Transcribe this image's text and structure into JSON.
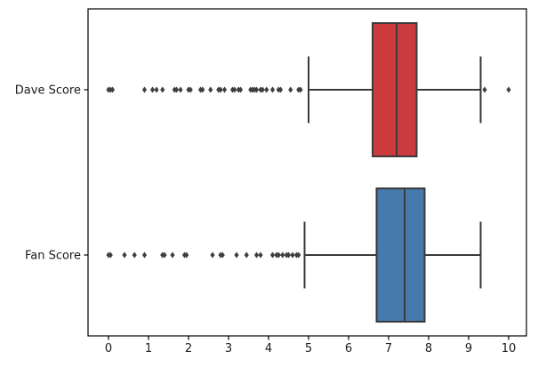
{
  "figure": {
    "background": "#ffffff",
    "spine_color": "#000000"
  },
  "chart_data": {
    "type": "boxplot",
    "orientation": "horizontal",
    "title": "",
    "xlabel": "",
    "ylabel": "",
    "categories": [
      "Dave Score",
      "Fan Score"
    ],
    "xticks": [
      0,
      1,
      2,
      3,
      4,
      5,
      6,
      7,
      8,
      9,
      10
    ],
    "xticklabels": [
      "0",
      "1",
      "2",
      "3",
      "4",
      "5",
      "6",
      "7",
      "8",
      "9",
      "10"
    ],
    "xlim": [
      -0.51,
      10.45
    ],
    "grid": false,
    "legend": "none",
    "line_color": "#3a3a3a",
    "flier_color": "#3f3f3f",
    "flier_marker": "diamond",
    "series": [
      {
        "label": "Dave Score",
        "box_color": "#cb3a3c",
        "whisker_low": 5.0,
        "q1": 6.6,
        "median": 7.2,
        "q3": 7.7,
        "whisker_high": 9.3,
        "outliers": [
          0,
          0.05,
          0.1,
          0.9,
          1.1,
          1.2,
          1.35,
          1.65,
          1.7,
          1.8,
          2.0,
          2.05,
          2.3,
          2.35,
          2.55,
          2.75,
          2.8,
          2.9,
          3.1,
          3.15,
          3.25,
          3.3,
          3.55,
          3.6,
          3.65,
          3.7,
          3.8,
          3.85,
          3.95,
          4.1,
          4.25,
          4.3,
          4.55,
          4.75,
          4.8,
          9.4,
          10.0
        ]
      },
      {
        "label": "Fan Score",
        "box_color": "#467aad",
        "whisker_low": 4.9,
        "q1": 6.7,
        "median": 7.4,
        "q3": 7.9,
        "whisker_high": 9.3,
        "outliers": [
          0,
          0.05,
          0.4,
          0.65,
          0.9,
          1.35,
          1.4,
          1.6,
          1.9,
          1.95,
          2.6,
          2.8,
          2.85,
          3.2,
          3.45,
          3.7,
          3.8,
          4.1,
          4.2,
          4.25,
          4.35,
          4.45,
          4.5,
          4.6,
          4.7,
          4.75
        ]
      }
    ]
  }
}
